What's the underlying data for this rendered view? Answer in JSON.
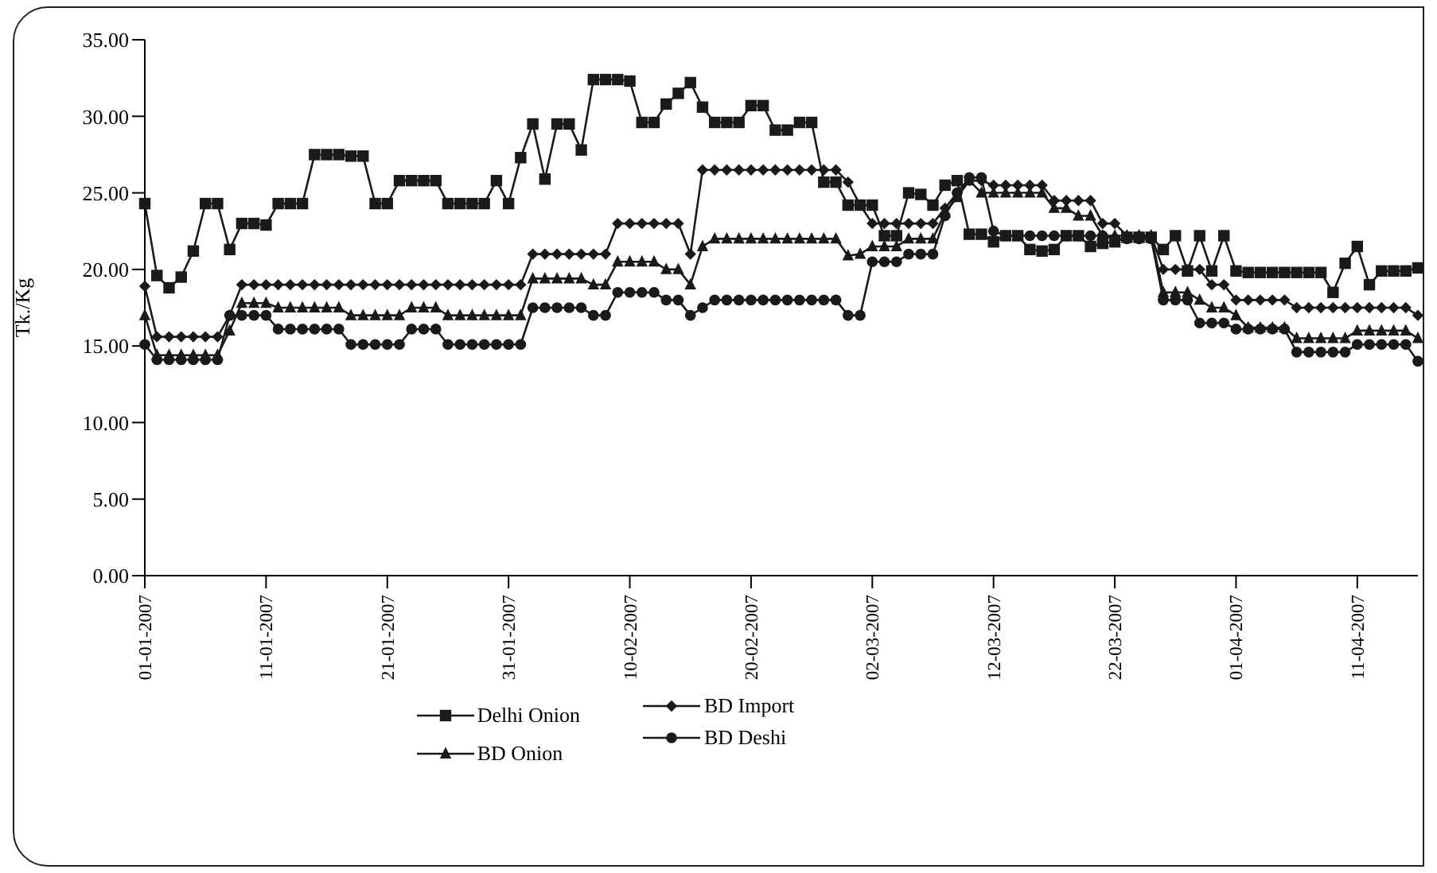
{
  "chart_data": {
    "type": "line",
    "ylabel": "Tk./Kg",
    "categories": [
      "01-01-2007",
      null,
      null,
      null,
      null,
      null,
      null,
      null,
      null,
      null,
      "11-01-2007",
      null,
      null,
      null,
      null,
      null,
      null,
      null,
      null,
      null,
      "21-01-2007",
      null,
      null,
      null,
      null,
      null,
      null,
      null,
      null,
      null,
      "31-01-2007",
      null,
      null,
      null,
      null,
      null,
      null,
      null,
      null,
      null,
      "10-02-2007",
      null,
      null,
      null,
      null,
      null,
      null,
      null,
      null,
      null,
      "20-02-2007",
      null,
      null,
      null,
      null,
      null,
      null,
      null,
      null,
      null,
      "02-03-2007",
      null,
      null,
      null,
      null,
      null,
      null,
      null,
      null,
      null,
      "12-03-2007",
      null,
      null,
      null,
      null,
      null,
      null,
      null,
      null,
      null,
      "22-03-2007",
      null,
      null,
      null,
      null,
      null,
      null,
      null,
      null,
      null,
      "01-04-2007",
      null,
      null,
      null,
      null,
      null,
      null,
      null,
      null,
      null,
      "11-04-2007",
      null,
      null,
      null,
      null,
      null
    ],
    "series": [
      {
        "name": "Delhi Onion",
        "color": "#1a1a1a",
        "marker": "square",
        "values": [
          24.3,
          19.6,
          18.8,
          19.5,
          21.2,
          24.3,
          24.3,
          21.3,
          23.0,
          23.0,
          22.9,
          24.3,
          24.3,
          24.3,
          27.5,
          27.5,
          27.5,
          27.4,
          27.4,
          24.3,
          24.3,
          25.8,
          25.8,
          25.8,
          25.8,
          24.3,
          24.3,
          24.3,
          24.3,
          25.8,
          24.3,
          27.3,
          29.5,
          25.9,
          29.5,
          29.5,
          27.8,
          32.4,
          32.4,
          32.4,
          32.3,
          29.6,
          29.6,
          30.8,
          31.5,
          32.2,
          30.6,
          29.6,
          29.6,
          29.6,
          30.7,
          30.7,
          29.1,
          29.1,
          29.6,
          29.6,
          25.7,
          25.7,
          24.2,
          24.2,
          24.2,
          22.2,
          22.2,
          25.0,
          24.9,
          24.2,
          25.5,
          25.8,
          22.3,
          22.3,
          21.8,
          22.2,
          22.2,
          21.3,
          21.2,
          21.3,
          22.2,
          22.2,
          21.5,
          21.7,
          21.8,
          22.1,
          22.1,
          22.1,
          21.3,
          22.2,
          19.9,
          22.2,
          19.9,
          22.2,
          19.9,
          19.8,
          19.8,
          19.8,
          19.8,
          19.8,
          19.8,
          19.8,
          18.5,
          20.4,
          21.5,
          19.0,
          19.9,
          19.9,
          19.9,
          20.1
        ]
      },
      {
        "name": "BD Import",
        "color": "#1a1a1a",
        "marker": "diamond",
        "values": [
          18.9,
          15.6,
          15.6,
          15.6,
          15.6,
          15.6,
          15.6,
          17.0,
          19.0,
          19.0,
          19.0,
          19.0,
          19.0,
          19.0,
          19.0,
          19.0,
          19.0,
          19.0,
          19.0,
          19.0,
          19.0,
          19.0,
          19.0,
          19.0,
          19.0,
          19.0,
          19.0,
          19.0,
          19.0,
          19.0,
          19.0,
          19.0,
          21.0,
          21.0,
          21.0,
          21.0,
          21.0,
          21.0,
          21.0,
          23.0,
          23.0,
          23.0,
          23.0,
          23.0,
          23.0,
          21.0,
          26.5,
          26.5,
          26.5,
          26.5,
          26.5,
          26.5,
          26.5,
          26.5,
          26.5,
          26.5,
          26.5,
          26.5,
          25.7,
          24.2,
          23.0,
          23.0,
          23.0,
          23.0,
          23.0,
          23.0,
          24.0,
          25.0,
          25.8,
          25.8,
          25.5,
          25.5,
          25.5,
          25.5,
          25.5,
          24.5,
          24.5,
          24.5,
          24.5,
          23.0,
          23.0,
          22.2,
          22.2,
          22.2,
          20.0,
          20.0,
          20.0,
          20.0,
          19.0,
          19.0,
          18.0,
          18.0,
          18.0,
          18.0,
          18.0,
          17.5,
          17.5,
          17.5,
          17.5,
          17.5,
          17.5,
          17.5,
          17.5,
          17.5,
          17.5,
          17.0
        ]
      },
      {
        "name": "BD Onion",
        "color": "#1a1a1a",
        "marker": "triangle",
        "values": [
          17.0,
          14.4,
          14.4,
          14.4,
          14.4,
          14.4,
          14.4,
          16.0,
          17.8,
          17.8,
          17.8,
          17.5,
          17.5,
          17.5,
          17.5,
          17.5,
          17.5,
          17.0,
          17.0,
          17.0,
          17.0,
          17.0,
          17.5,
          17.5,
          17.5,
          17.0,
          17.0,
          17.0,
          17.0,
          17.0,
          17.0,
          17.0,
          19.4,
          19.4,
          19.4,
          19.4,
          19.4,
          19.0,
          19.0,
          20.5,
          20.5,
          20.5,
          20.5,
          20.0,
          20.0,
          19.0,
          21.5,
          22.0,
          22.0,
          22.0,
          22.0,
          22.0,
          22.0,
          22.0,
          22.0,
          22.0,
          22.0,
          22.0,
          20.9,
          21.0,
          21.5,
          21.5,
          21.5,
          22.0,
          22.0,
          22.0,
          23.7,
          24.7,
          25.8,
          25.0,
          25.0,
          25.0,
          25.0,
          25.0,
          25.0,
          24.0,
          24.0,
          23.5,
          23.5,
          22.2,
          22.2,
          22.2,
          22.2,
          22.2,
          18.5,
          18.5,
          18.5,
          18.0,
          17.5,
          17.5,
          17.0,
          16.2,
          16.2,
          16.2,
          16.2,
          15.5,
          15.5,
          15.5,
          15.5,
          15.5,
          16.0,
          16.0,
          16.0,
          16.0,
          16.0,
          15.5
        ]
      },
      {
        "name": "BD Deshi",
        "color": "#1a1a1a",
        "marker": "circle",
        "values": [
          15.1,
          14.1,
          14.1,
          14.1,
          14.1,
          14.1,
          14.1,
          17.0,
          17.0,
          17.0,
          17.0,
          16.1,
          16.1,
          16.1,
          16.1,
          16.1,
          16.1,
          15.1,
          15.1,
          15.1,
          15.1,
          15.1,
          16.1,
          16.1,
          16.1,
          15.1,
          15.1,
          15.1,
          15.1,
          15.1,
          15.1,
          15.1,
          17.5,
          17.5,
          17.5,
          17.5,
          17.5,
          17.0,
          17.0,
          18.5,
          18.5,
          18.5,
          18.5,
          18.0,
          18.0,
          17.0,
          17.5,
          18.0,
          18.0,
          18.0,
          18.0,
          18.0,
          18.0,
          18.0,
          18.0,
          18.0,
          18.0,
          18.0,
          17.0,
          17.0,
          20.5,
          20.5,
          20.5,
          21.0,
          21.0,
          21.0,
          23.5,
          25.0,
          26.0,
          26.0,
          22.5,
          22.2,
          22.2,
          22.2,
          22.2,
          22.2,
          22.2,
          22.2,
          22.2,
          22.2,
          22.0,
          22.0,
          22.0,
          22.0,
          18.0,
          18.0,
          18.0,
          16.5,
          16.5,
          16.5,
          16.1,
          16.1,
          16.1,
          16.1,
          16.1,
          14.6,
          14.6,
          14.6,
          14.6,
          14.6,
          15.1,
          15.1,
          15.1,
          15.1,
          15.1,
          14.0
        ]
      }
    ],
    "ylim": [
      0,
      35
    ],
    "yticks": [
      {
        "value": 0,
        "label": "0.00"
      },
      {
        "value": 5,
        "label": "5.00"
      },
      {
        "value": 10,
        "label": "10.00"
      },
      {
        "value": 15,
        "label": "15.00"
      },
      {
        "value": 20,
        "label": "20.00"
      },
      {
        "value": 25,
        "label": "25.00"
      },
      {
        "value": 30,
        "label": "30.00"
      },
      {
        "value": 35,
        "label": "35.00"
      }
    ],
    "grid": false,
    "legend": "bottom",
    "line_style": "solid"
  }
}
